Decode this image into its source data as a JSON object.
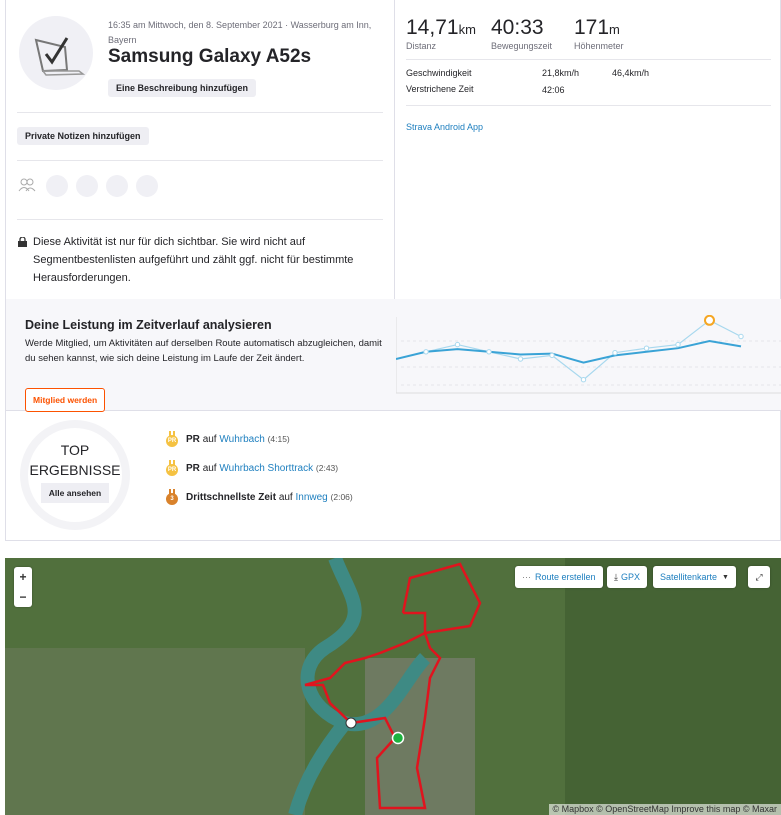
{
  "activity": {
    "meta": "16:35 am Mittwoch, den 8. September 2021 · Wasserburg am Inn, Bayern",
    "title": "Samsung Galaxy A52s",
    "add_description": "Eine Beschreibung hinzufügen",
    "add_notes": "Private Notizen hinzufügen",
    "privacy_note": "Diese Aktivität ist nur für dich sichtbar. Sie wird nicht auf Segmentbestenlisten aufgeführt und zählt ggf. nicht für bestimmte Herausforderungen."
  },
  "stats": [
    {
      "value": "14,71",
      "unit": "km",
      "label": "Distanz"
    },
    {
      "value": "40:33",
      "unit": "",
      "label": "Bewegungszeit"
    },
    {
      "value": "171",
      "unit": "m",
      "label": "Höhenmeter"
    }
  ],
  "details": {
    "speed_label": "Geschwindigkeit",
    "speed_avg": "21,8km/h",
    "speed_max": "46,4km/h",
    "elapsed_label": "Verstrichene Zeit",
    "elapsed": "42:06",
    "device": "Strava Android App"
  },
  "promo": {
    "title": "Deine Leistung im Zeitverlauf analysieren",
    "text": "Werde Mitglied, um Aktivitäten auf derselben Route automatisch abzugleichen, damit du sehen kannst, wie sich deine Leistung im Laufe der Zeit ändert.",
    "button": "Mitglied werden",
    "spark_line": [
      40,
      48,
      51,
      48,
      45,
      46,
      36,
      44,
      48,
      52,
      60,
      54
    ],
    "spark_points": [
      48,
      56,
      48,
      40,
      44,
      17,
      47,
      52,
      56,
      83,
      65
    ],
    "colors": {
      "line": "#3aa3d6",
      "points": "#a8d8ee",
      "highlight": "#f5a623"
    }
  },
  "top": {
    "title_1": "TOP",
    "title_2": "ERGEBNISSE",
    "button": "Alle ansehen",
    "items": [
      {
        "medal": "PR",
        "medal_color": "#f5c242",
        "prefix": "PR",
        "mid": "auf",
        "segment": "Wuhrbach",
        "time": "(4:15)"
      },
      {
        "medal": "PR",
        "medal_color": "#f5c242",
        "prefix": "PR",
        "mid": "auf",
        "segment": "Wuhrbach Shorttrack",
        "time": "(2:43)"
      },
      {
        "medal": "3",
        "medal_color": "#d9822b",
        "prefix": "Drittschnellste Zeit",
        "mid": "auf",
        "segment": "Innweg",
        "time": "(2:06)"
      }
    ]
  },
  "map": {
    "zoom_in": "+",
    "zoom_out": "−",
    "route": "Route erstellen",
    "gpx": "GPX",
    "layer": "Satellitenkarte",
    "attribution": "© Mapbox © OpenStreetMap Improve this map © Maxar",
    "route_color": "#e0141e"
  }
}
